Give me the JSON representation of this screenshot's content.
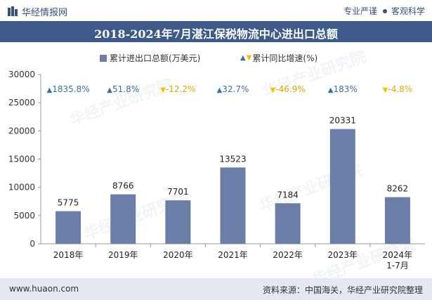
{
  "header": {
    "brand": "华经情报网",
    "tagline_left": "专业严谨",
    "tagline_right": "客观科学",
    "title": "2018-2024年7月湛江保税物流中心进出口总额"
  },
  "legend": {
    "series1": "累计进出口总额(万美元)",
    "series2": "累计同比增速(%)"
  },
  "watermark": "华经产业研究院",
  "footer": {
    "website": "www.huaon.com",
    "source": "资料来源：中国海关，华经产业研究院整理"
  },
  "colors": {
    "bar": "#6b7ea8",
    "up": "#3d6fa3",
    "down": "#f2c200",
    "title_bg": "#3d5a8a",
    "footer_bg": "#e4e8f0"
  },
  "chart_data": {
    "type": "bar",
    "categories": [
      "2018年",
      "2019年",
      "2020年",
      "2021年",
      "2022年",
      "2023年",
      "2024年\n1-7月"
    ],
    "series": [
      {
        "name": "累计进出口总额(万美元)",
        "values": [
          5775,
          8766,
          7701,
          13523,
          7184,
          20331,
          8262
        ]
      },
      {
        "name": "累计同比增速(%)",
        "values": [
          1835.8,
          51.8,
          -12.2,
          32.7,
          -46.9,
          183,
          -4.8
        ]
      }
    ],
    "growth_labels": [
      "1835.8%",
      "51.8%",
      "-12.2%",
      "32.7%",
      "-46.9%",
      "183%",
      "-4.8%"
    ],
    "yticks": [
      0,
      5000,
      10000,
      15000,
      20000,
      25000,
      30000
    ],
    "ylim": [
      0,
      30000
    ],
    "legend_position": "top"
  }
}
